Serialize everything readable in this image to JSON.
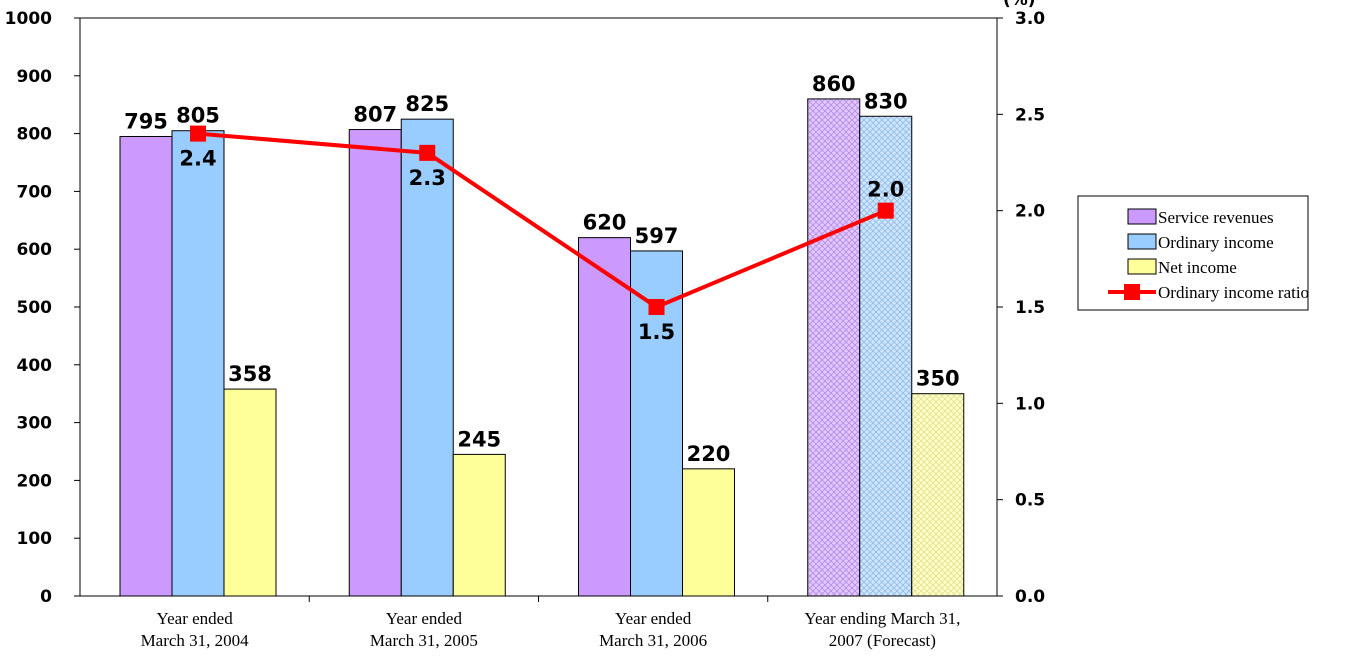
{
  "chart_data": {
    "type": "bar",
    "title": "",
    "categories": [
      [
        "Year ended",
        "March 31, 2004"
      ],
      [
        "Year ended",
        "March 31, 2005"
      ],
      [
        "Year ended",
        "March 31, 2006"
      ],
      [
        "Year ending March 31,",
        "2007 (Forecast)"
      ]
    ],
    "forecast_category_index": 3,
    "series": [
      {
        "name": "Service revenues",
        "type": "bar",
        "axis": "left",
        "color": "#cc99ff",
        "values": [
          795,
          807,
          620,
          860
        ]
      },
      {
        "name": "Ordinary income",
        "type": "bar",
        "axis": "left",
        "color": "#99ccff",
        "values": [
          805,
          825,
          597,
          830
        ]
      },
      {
        "name": "Net income",
        "type": "bar",
        "axis": "left",
        "color": "#ffff99",
        "values": [
          358,
          245,
          220,
          350
        ]
      },
      {
        "name": "Ordinary income ratio",
        "type": "line",
        "axis": "right",
        "color": "#ff0000",
        "values": [
          2.4,
          2.3,
          1.5,
          2.0
        ]
      }
    ],
    "left_axis": {
      "min": 0,
      "max": 1000,
      "step": 100,
      "ticks": [
        "0",
        "100",
        "200",
        "300",
        "400",
        "500",
        "600",
        "700",
        "800",
        "900",
        "1000"
      ]
    },
    "right_axis": {
      "min": 0,
      "max": 3,
      "step": 0.5,
      "ticks": [
        "0.0",
        "0.5",
        "1.0",
        "1.5",
        "2.0",
        "2.5",
        "3.0"
      ],
      "unit_label": "(%)"
    },
    "bar_labels": [
      [
        "795",
        "807",
        "620",
        "860"
      ],
      [
        "805",
        "825",
        "597",
        "830"
      ],
      [
        "358",
        "245",
        "220",
        "350"
      ]
    ],
    "line_labels": [
      "2.4",
      "2.3",
      "1.5",
      "2.0"
    ],
    "legend": {
      "position": "right"
    },
    "grid": false
  }
}
